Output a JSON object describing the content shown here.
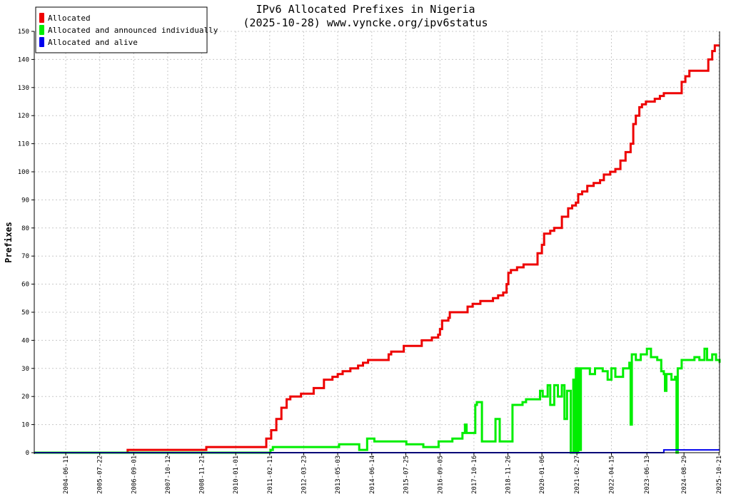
{
  "chart_data": {
    "type": "line",
    "title": "IPv6 Allocated Prefixes in Nigeria",
    "subtitle": "(2025-10-28) www.vyncke.org/ipv6status",
    "xlabel": "",
    "ylabel": "Prefixes",
    "xlim": [
      "2003-06-01",
      "2025-10-28"
    ],
    "ylim": [
      0,
      150
    ],
    "y_ticks": [
      0,
      10,
      20,
      30,
      40,
      50,
      60,
      70,
      80,
      90,
      100,
      110,
      120,
      130,
      140,
      150
    ],
    "x_ticks": [
      "2004-06-11",
      "2005-07-22",
      "2006-09-01",
      "2007-10-12",
      "2008-11-21",
      "2010-01-01",
      "2011-02-11",
      "2012-03-23",
      "2013-05-03",
      "2014-06-14",
      "2015-07-25",
      "2016-09-05",
      "2017-10-16",
      "2018-11-26",
      "2020-01-06",
      "2021-02-27",
      "2022-04-15",
      "2023-06-13",
      "2024-08-29",
      "2025-10-21"
    ],
    "grid": true,
    "legend_position": "top-left",
    "series": [
      {
        "name": "Allocated",
        "color": "#ee0000",
        "points": [
          [
            "2003-06-01",
            0
          ],
          [
            "2006-06-01",
            0
          ],
          [
            "2006-06-20",
            1
          ],
          [
            "2008-11-21",
            1
          ],
          [
            "2009-01-15",
            2
          ],
          [
            "2010-11-15",
            2
          ],
          [
            "2011-01-01",
            5
          ],
          [
            "2011-03-01",
            8
          ],
          [
            "2011-05-01",
            12
          ],
          [
            "2011-07-01",
            16
          ],
          [
            "2011-09-01",
            19
          ],
          [
            "2011-10-15",
            20
          ],
          [
            "2012-02-01",
            20
          ],
          [
            "2012-02-20",
            21
          ],
          [
            "2012-07-01",
            21
          ],
          [
            "2012-07-20",
            23
          ],
          [
            "2012-11-01",
            23
          ],
          [
            "2012-11-20",
            26
          ],
          [
            "2013-03-01",
            27
          ],
          [
            "2013-05-03",
            28
          ],
          [
            "2013-07-01",
            29
          ],
          [
            "2013-10-01",
            30
          ],
          [
            "2014-01-01",
            31
          ],
          [
            "2014-03-01",
            32
          ],
          [
            "2014-05-01",
            33
          ],
          [
            "2014-12-01",
            33
          ],
          [
            "2015-01-01",
            35
          ],
          [
            "2015-02-01",
            36
          ],
          [
            "2015-06-01",
            36
          ],
          [
            "2015-07-01",
            38
          ],
          [
            "2016-01-01",
            38
          ],
          [
            "2016-02-01",
            40
          ],
          [
            "2016-06-01",
            41
          ],
          [
            "2016-08-15",
            42
          ],
          [
            "2016-09-05",
            44
          ],
          [
            "2016-10-01",
            47
          ],
          [
            "2016-12-15",
            48
          ],
          [
            "2017-01-01",
            50
          ],
          [
            "2017-06-01",
            50
          ],
          [
            "2017-08-01",
            52
          ],
          [
            "2017-10-01",
            53
          ],
          [
            "2017-11-15",
            53
          ],
          [
            "2018-01-01",
            54
          ],
          [
            "2018-06-01",
            55
          ],
          [
            "2018-08-01",
            56
          ],
          [
            "2018-10-01",
            57
          ],
          [
            "2018-11-10",
            60
          ],
          [
            "2018-12-01",
            64
          ],
          [
            "2019-01-01",
            65
          ],
          [
            "2019-03-15",
            66
          ],
          [
            "2019-06-01",
            67
          ],
          [
            "2019-09-15",
            67
          ],
          [
            "2019-11-15",
            71
          ],
          [
            "2020-01-06",
            74
          ],
          [
            "2020-02-01",
            78
          ],
          [
            "2020-04-15",
            79
          ],
          [
            "2020-06-01",
            80
          ],
          [
            "2020-09-01",
            84
          ],
          [
            "2020-11-15",
            87
          ],
          [
            "2021-01-01",
            88
          ],
          [
            "2021-02-15",
            89
          ],
          [
            "2021-03-15",
            92
          ],
          [
            "2021-05-01",
            93
          ],
          [
            "2021-07-01",
            95
          ],
          [
            "2021-09-15",
            96
          ],
          [
            "2021-12-01",
            97
          ],
          [
            "2022-01-15",
            99
          ],
          [
            "2022-04-01",
            100
          ],
          [
            "2022-06-01",
            101
          ],
          [
            "2022-08-01",
            104
          ],
          [
            "2022-10-01",
            107
          ],
          [
            "2022-12-01",
            110
          ],
          [
            "2023-01-01",
            117
          ],
          [
            "2023-02-01",
            120
          ],
          [
            "2023-03-15",
            123
          ],
          [
            "2023-04-15",
            124
          ],
          [
            "2023-06-01",
            125
          ],
          [
            "2023-08-15",
            125
          ],
          [
            "2023-09-15",
            126
          ],
          [
            "2023-11-15",
            127
          ],
          [
            "2024-01-01",
            128
          ],
          [
            "2024-06-01",
            128
          ],
          [
            "2024-08-01",
            132
          ],
          [
            "2024-09-15",
            134
          ],
          [
            "2024-11-01",
            136
          ],
          [
            "2025-05-01",
            136
          ],
          [
            "2025-06-15",
            140
          ],
          [
            "2025-08-01",
            143
          ],
          [
            "2025-09-01",
            145
          ],
          [
            "2025-10-28",
            145
          ]
        ]
      },
      {
        "name": "Allocated and announced individually",
        "color": "#00ee00",
        "points": [
          [
            "2003-06-01",
            0
          ],
          [
            "2011-01-20",
            0
          ],
          [
            "2011-02-20",
            1
          ],
          [
            "2011-03-20",
            2
          ],
          [
            "2013-05-03",
            2
          ],
          [
            "2013-05-20",
            3
          ],
          [
            "2014-01-01",
            3
          ],
          [
            "2014-01-15",
            1
          ],
          [
            "2014-04-01",
            1
          ],
          [
            "2014-04-20",
            5
          ],
          [
            "2014-07-01",
            5
          ],
          [
            "2014-07-15",
            4
          ],
          [
            "2015-08-01",
            3
          ],
          [
            "2016-02-01",
            3
          ],
          [
            "2016-02-20",
            2
          ],
          [
            "2016-08-01",
            2
          ],
          [
            "2016-08-20",
            4
          ],
          [
            "2017-01-01",
            4
          ],
          [
            "2017-02-01",
            5
          ],
          [
            "2017-05-01",
            5
          ],
          [
            "2017-06-01",
            7
          ],
          [
            "2017-07-01",
            10
          ],
          [
            "2017-07-20",
            7
          ],
          [
            "2017-10-16",
            7
          ],
          [
            "2017-11-01",
            17
          ],
          [
            "2017-11-20",
            18
          ],
          [
            "2018-01-01",
            18
          ],
          [
            "2018-01-20",
            4
          ],
          [
            "2018-06-15",
            4
          ],
          [
            "2018-07-01",
            12
          ],
          [
            "2018-08-01",
            12
          ],
          [
            "2018-08-20",
            4
          ],
          [
            "2019-01-01",
            4
          ],
          [
            "2019-01-20",
            17
          ],
          [
            "2019-05-01",
            17
          ],
          [
            "2019-05-20",
            18
          ],
          [
            "2019-07-01",
            19
          ],
          [
            "2019-12-01",
            19
          ],
          [
            "2019-12-15",
            22
          ],
          [
            "2020-01-15",
            20
          ],
          [
            "2020-03-15",
            24
          ],
          [
            "2020-04-15",
            17
          ],
          [
            "2020-06-01",
            24
          ],
          [
            "2020-07-15",
            20
          ],
          [
            "2020-09-01",
            24
          ],
          [
            "2020-10-01",
            12
          ],
          [
            "2020-11-01",
            22
          ],
          [
            "2020-12-15",
            0
          ],
          [
            "2021-01-15",
            26
          ],
          [
            "2021-02-01",
            0
          ],
          [
            "2021-02-15",
            30
          ],
          [
            "2021-03-01",
            0
          ],
          [
            "2021-03-15",
            30
          ],
          [
            "2021-04-01",
            1
          ],
          [
            "2021-04-15",
            30
          ],
          [
            "2021-06-01",
            30
          ],
          [
            "2021-08-01",
            28
          ],
          [
            "2021-10-01",
            30
          ],
          [
            "2022-01-01",
            29
          ],
          [
            "2022-03-01",
            26
          ],
          [
            "2022-04-15",
            30
          ],
          [
            "2022-06-01",
            27
          ],
          [
            "2022-09-01",
            30
          ],
          [
            "2022-11-15",
            32
          ],
          [
            "2022-12-01",
            10
          ],
          [
            "2022-12-15",
            35
          ],
          [
            "2023-02-01",
            33
          ],
          [
            "2023-04-01",
            35
          ],
          [
            "2023-06-13",
            37
          ],
          [
            "2023-08-01",
            34
          ],
          [
            "2023-10-15",
            33
          ],
          [
            "2023-12-01",
            29
          ],
          [
            "2024-01-01",
            28
          ],
          [
            "2024-01-15",
            22
          ],
          [
            "2024-02-01",
            28
          ],
          [
            "2024-04-01",
            26
          ],
          [
            "2024-05-15",
            27
          ],
          [
            "2024-06-01",
            0
          ],
          [
            "2024-06-15",
            30
          ],
          [
            "2024-08-01",
            33
          ],
          [
            "2024-10-01",
            33
          ],
          [
            "2025-01-01",
            34
          ],
          [
            "2025-03-01",
            33
          ],
          [
            "2025-05-01",
            37
          ],
          [
            "2025-06-01",
            33
          ],
          [
            "2025-08-01",
            35
          ],
          [
            "2025-09-15",
            33
          ],
          [
            "2025-10-28",
            32
          ]
        ]
      },
      {
        "name": "Allocated and alive",
        "color": "#0000ee",
        "points": [
          [
            "2003-06-01",
            0
          ],
          [
            "2023-12-01",
            0
          ],
          [
            "2024-01-01",
            1
          ],
          [
            "2025-10-28",
            1
          ]
        ]
      }
    ]
  }
}
